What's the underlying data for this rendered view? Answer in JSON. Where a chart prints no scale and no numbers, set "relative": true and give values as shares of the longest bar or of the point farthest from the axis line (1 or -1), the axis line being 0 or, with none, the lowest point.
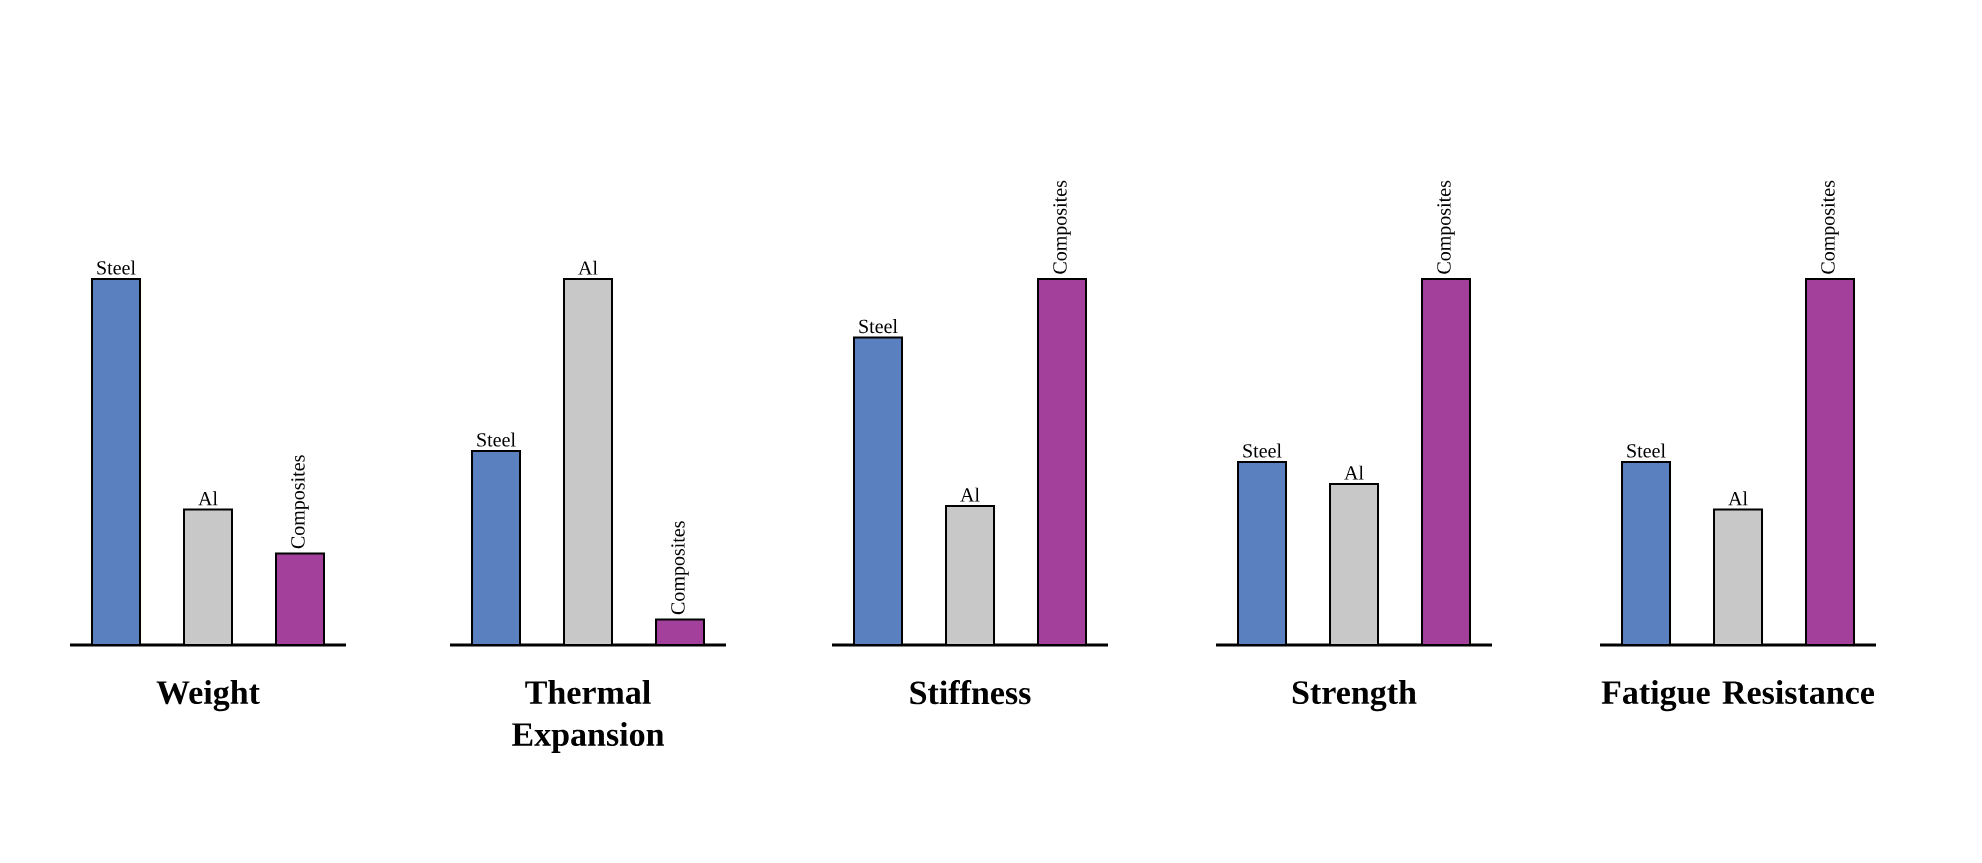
{
  "chart_data": [
    {
      "type": "bar",
      "title": "Weight",
      "categories": [
        "Steel",
        "Al",
        "Composites"
      ],
      "values": [
        1,
        0.37,
        0.25
      ],
      "colors": [
        "#5b80c0",
        "#c8c8c8",
        "#a3409c"
      ],
      "relative": true
    },
    {
      "type": "bar",
      "title": "Thermal Expansion",
      "categories": [
        "Steel",
        "Al",
        "Composites"
      ],
      "values": [
        0.53,
        1,
        0.07
      ],
      "colors": [
        "#5b80c0",
        "#c8c8c8",
        "#a3409c"
      ],
      "relative": true
    },
    {
      "type": "bar",
      "title": "Stiffness",
      "categories": [
        "Steel",
        "Al",
        "Composites"
      ],
      "values": [
        0.84,
        0.38,
        1
      ],
      "colors": [
        "#5b80c0",
        "#c8c8c8",
        "#a3409c"
      ],
      "relative": true
    },
    {
      "type": "bar",
      "title": "Strength",
      "categories": [
        "Steel",
        "Al",
        "Composites"
      ],
      "values": [
        0.5,
        0.44,
        1
      ],
      "colors": [
        "#5b80c0",
        "#c8c8c8",
        "#a3409c"
      ],
      "relative": true
    },
    {
      "type": "bar",
      "title": "Fatigue Resistance",
      "categories": [
        "Steel",
        "Al",
        "Composites"
      ],
      "values": [
        0.5,
        0.37,
        1
      ],
      "colors": [
        "#5b80c0",
        "#c8c8c8",
        "#a3409c"
      ],
      "relative": true
    }
  ]
}
